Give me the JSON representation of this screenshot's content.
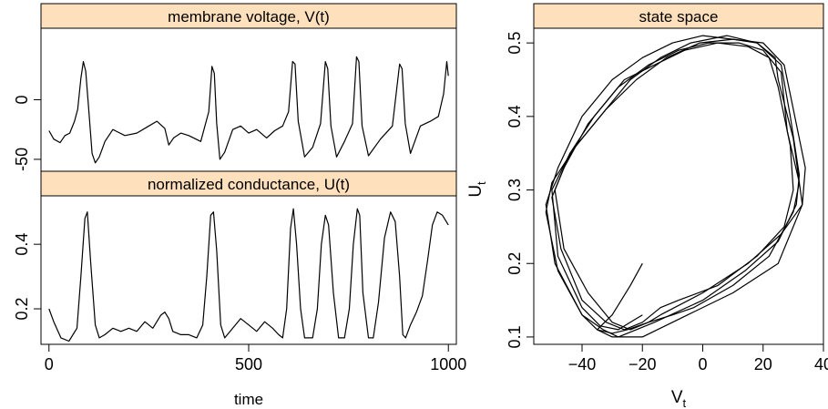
{
  "chart_data": [
    {
      "type": "line",
      "title": "membrane voltage, V(t)",
      "xlabel": "",
      "ylabel": "",
      "xlim": [
        -20,
        1020
      ],
      "ylim": [
        -60,
        60
      ],
      "yticks": [
        0,
        -50
      ],
      "ytick_labels": [
        "0",
        "-50"
      ],
      "series": [
        {
          "x": [
            0,
            12,
            28,
            40,
            52,
            64,
            72,
            80,
            86,
            92,
            100,
            108,
            116,
            126,
            140,
            160,
            190,
            220,
            250,
            270,
            290,
            300,
            312,
            330,
            350,
            380,
            400,
            408,
            414,
            420,
            428,
            440,
            460,
            480,
            500,
            520,
            545,
            565,
            585,
            600,
            610,
            616,
            624,
            640,
            660,
            680,
            692,
            698,
            706,
            720,
            740,
            760,
            770,
            776,
            784,
            800,
            830,
            860,
            878,
            884,
            892,
            905,
            930,
            955,
            975,
            988,
            996,
            1000
          ],
          "y": [
            -26,
            -33,
            -36,
            -30,
            -28,
            -18,
            -8,
            18,
            32,
            24,
            -10,
            -45,
            -53,
            -48,
            -35,
            -25,
            -30,
            -28,
            -22,
            -18,
            -24,
            -38,
            -32,
            -28,
            -30,
            -35,
            -10,
            28,
            22,
            -20,
            -50,
            -44,
            -25,
            -22,
            -28,
            -25,
            -32,
            -26,
            -22,
            -10,
            32,
            30,
            -18,
            -48,
            -40,
            -20,
            32,
            26,
            -22,
            -48,
            -35,
            -20,
            36,
            32,
            -22,
            -47,
            -33,
            -22,
            30,
            26,
            -20,
            -45,
            -22,
            -18,
            -14,
            5,
            32,
            20
          ]
        }
      ]
    },
    {
      "type": "line",
      "title": "normalized conductance, U(t)",
      "xlabel": "time",
      "ylabel": "",
      "xlim": [
        -20,
        1020
      ],
      "ylim": [
        0.09,
        0.55
      ],
      "xticks": [
        0,
        500,
        1000
      ],
      "xtick_labels": [
        "0",
        "500",
        "1000"
      ],
      "yticks": [
        0.2,
        0.4
      ],
      "ytick_labels": [
        "0.2",
        "0.4"
      ],
      "series": [
        {
          "x": [
            0,
            12,
            30,
            50,
            70,
            80,
            90,
            96,
            104,
            116,
            126,
            140,
            160,
            180,
            200,
            220,
            240,
            260,
            280,
            290,
            300,
            310,
            330,
            350,
            370,
            385,
            395,
            405,
            412,
            420,
            430,
            440,
            460,
            480,
            500,
            520,
            540,
            560,
            575,
            585,
            595,
            605,
            612,
            620,
            630,
            640,
            660,
            672,
            682,
            692,
            700,
            712,
            725,
            740,
            752,
            762,
            772,
            778,
            786,
            800,
            812,
            825,
            840,
            855,
            867,
            878,
            886,
            893,
            905,
            920,
            935,
            948,
            960,
            972,
            985,
            1000
          ],
          "y": [
            0.2,
            0.16,
            0.11,
            0.1,
            0.14,
            0.3,
            0.48,
            0.5,
            0.35,
            0.15,
            0.11,
            0.12,
            0.14,
            0.13,
            0.14,
            0.13,
            0.16,
            0.14,
            0.18,
            0.19,
            0.17,
            0.13,
            0.12,
            0.12,
            0.11,
            0.15,
            0.3,
            0.49,
            0.5,
            0.38,
            0.15,
            0.11,
            0.14,
            0.17,
            0.15,
            0.13,
            0.16,
            0.14,
            0.12,
            0.11,
            0.2,
            0.45,
            0.51,
            0.4,
            0.2,
            0.11,
            0.11,
            0.2,
            0.4,
            0.49,
            0.46,
            0.25,
            0.11,
            0.11,
            0.2,
            0.4,
            0.51,
            0.49,
            0.25,
            0.11,
            0.11,
            0.22,
            0.42,
            0.5,
            0.47,
            0.3,
            0.12,
            0.11,
            0.15,
            0.19,
            0.24,
            0.35,
            0.46,
            0.5,
            0.49,
            0.46
          ]
        }
      ]
    },
    {
      "type": "line",
      "title": "state space",
      "xlabel": "V_t",
      "ylabel": "U_t",
      "xlim": [
        -56,
        40
      ],
      "ylim": [
        0.09,
        0.52
      ],
      "xticks": [
        -40,
        -20,
        0,
        20,
        40
      ],
      "xtick_labels": [
        "−40",
        "−20",
        "0",
        "20",
        "40"
      ],
      "yticks": [
        0.1,
        0.2,
        0.3,
        0.4,
        0.5
      ],
      "ytick_labels": [
        "0.1",
        "0.2",
        "0.3",
        "0.4",
        "0.5"
      ],
      "series": [
        {
          "x": [
            -20,
            -24,
            -30,
            -35,
            -30,
            -20,
            -5,
            10,
            25,
            33,
            30,
            25,
            24,
            18,
            10,
            0,
            -10,
            -20,
            -30,
            -40,
            -48,
            -52,
            -49,
            -40,
            -35,
            -30,
            -25,
            -18,
            -10
          ],
          "y": [
            0.2,
            0.17,
            0.13,
            0.11,
            0.1,
            0.1,
            0.13,
            0.16,
            0.2,
            0.28,
            0.37,
            0.45,
            0.48,
            0.5,
            0.505,
            0.51,
            0.5,
            0.48,
            0.45,
            0.4,
            0.33,
            0.28,
            0.2,
            0.13,
            0.11,
            0.105,
            0.11,
            0.12,
            0.13
          ]
        },
        {
          "x": [
            -10,
            -3,
            10,
            22,
            30,
            32,
            28,
            26,
            20,
            12,
            2,
            -8,
            -18,
            -28,
            -38,
            -46,
            -50,
            -47,
            -40,
            -32,
            -26,
            -20,
            -14,
            -8
          ],
          "y": [
            0.13,
            0.14,
            0.17,
            0.21,
            0.27,
            0.31,
            0.38,
            0.46,
            0.49,
            0.5,
            0.5,
            0.49,
            0.47,
            0.44,
            0.39,
            0.33,
            0.29,
            0.22,
            0.15,
            0.12,
            0.11,
            0.12,
            0.14,
            0.15
          ]
        },
        {
          "x": [
            -8,
            5,
            18,
            27,
            30,
            29,
            25,
            22,
            15,
            5,
            -6,
            -16,
            -26,
            -36,
            -44,
            -49,
            -46,
            -38,
            -30,
            -24,
            -18,
            -14
          ],
          "y": [
            0.15,
            0.17,
            0.21,
            0.25,
            0.3,
            0.36,
            0.44,
            0.48,
            0.495,
            0.5,
            0.49,
            0.47,
            0.45,
            0.4,
            0.35,
            0.3,
            0.22,
            0.16,
            0.12,
            0.11,
            0.12,
            0.13
          ]
        },
        {
          "x": [
            -14,
            0,
            15,
            26,
            33,
            34,
            30,
            27,
            20,
            10,
            -1,
            -12,
            -22,
            -32,
            -42,
            -50,
            -52,
            -48,
            -40,
            -33,
            -28,
            -22,
            -16
          ],
          "y": [
            0.13,
            0.16,
            0.2,
            0.24,
            0.28,
            0.33,
            0.41,
            0.47,
            0.5,
            0.505,
            0.5,
            0.48,
            0.45,
            0.41,
            0.36,
            0.31,
            0.27,
            0.19,
            0.13,
            0.11,
            0.1,
            0.11,
            0.12
          ]
        },
        {
          "x": [
            -16,
            0,
            14,
            25,
            31,
            32,
            29,
            26,
            18,
            8,
            -4,
            -14,
            -24,
            -34,
            -44,
            -50,
            -48,
            -40,
            -34,
            -28,
            -24,
            -20
          ],
          "y": [
            0.12,
            0.15,
            0.19,
            0.23,
            0.28,
            0.32,
            0.4,
            0.47,
            0.5,
            0.51,
            0.5,
            0.48,
            0.45,
            0.4,
            0.35,
            0.3,
            0.21,
            0.14,
            0.115,
            0.11,
            0.12,
            0.13
          ]
        }
      ]
    }
  ]
}
